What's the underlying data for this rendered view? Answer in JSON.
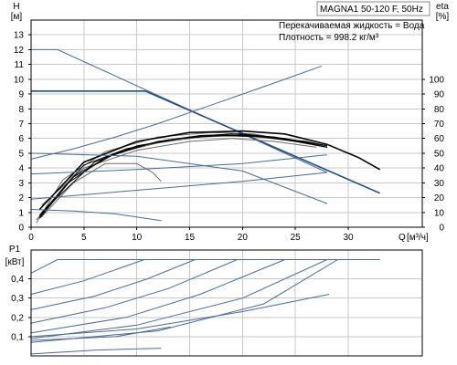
{
  "title": "MAGNA1 50-120 F, 50Hz",
  "fluid_line": "Перекачиваемая жидкость = Вода",
  "density_line": "Плотность = 998.2 кг/м³",
  "head_axis": {
    "label": "H",
    "unit": "[м]"
  },
  "eta_axis": {
    "label": "eta",
    "unit": "[%]"
  },
  "flow_axis": {
    "label": "Q",
    "unit": "[м³/ч]"
  },
  "power_axis": {
    "label": "P1",
    "unit": "[кВт]"
  },
  "chart_data": [
    {
      "type": "line",
      "name": "head",
      "xlim": [
        0,
        37
      ],
      "ylim": [
        0,
        14
      ],
      "x_ticks": [
        0,
        5,
        10,
        15,
        20,
        25,
        30
      ],
      "y_ticks": [
        0,
        1,
        2,
        3,
        4,
        5,
        6,
        7,
        8,
        9,
        10,
        11,
        12,
        13
      ],
      "grid": true,
      "series": [
        {
          "style": "blue",
          "points": [
            [
              0,
              12
            ],
            [
              2.5,
              12
            ],
            [
              28,
              3.7
            ]
          ]
        },
        {
          "style": "heavyblue",
          "points": [
            [
              0,
              9.2
            ],
            [
              10.8,
              9.2
            ],
            [
              33,
              2.3
            ]
          ]
        },
        {
          "style": "gray",
          "points": [
            [
              0.5,
              0.3
            ],
            [
              3,
              3.2
            ],
            [
              7,
              5.1
            ],
            [
              12,
              6.1
            ],
            [
              17,
              6.4
            ],
            [
              21,
              6.3
            ],
            [
              25,
              5.8
            ],
            [
              28,
              5.4
            ]
          ]
        },
        {
          "style": "gray",
          "points": [
            [
              0.5,
              0.5
            ],
            [
              4,
              3.5
            ],
            [
              8,
              5
            ],
            [
              12,
              5.7
            ],
            [
              16,
              6.1
            ],
            [
              20,
              6.2
            ],
            [
              24,
              5.9
            ],
            [
              28,
              5.5
            ]
          ]
        },
        {
          "style": "gray",
          "points": [
            [
              1,
              1.5
            ],
            [
              5,
              4
            ],
            [
              10,
              5.2
            ],
            [
              15,
              5.8
            ],
            [
              19,
              6
            ],
            [
              23,
              5.8
            ],
            [
              27,
              5.4
            ]
          ]
        },
        {
          "style": "gray",
          "points": [
            [
              1,
              0.7
            ],
            [
              4,
              3
            ],
            [
              7,
              4.3
            ],
            [
              10,
              4.3
            ],
            [
              11.5,
              3.7
            ],
            [
              12.3,
              3.1
            ]
          ]
        },
        {
          "style": "black",
          "points": [
            [
              0.8,
              0.7
            ],
            [
              3.5,
              3
            ],
            [
              7,
              4.7
            ],
            [
              11,
              5.6
            ],
            [
              15,
              6.1
            ],
            [
              19,
              6.3
            ],
            [
              23,
              6.1
            ],
            [
              26,
              5.7
            ],
            [
              28,
              5.4
            ]
          ]
        },
        {
          "style": "black",
          "points": [
            [
              0.8,
              0.6
            ],
            [
              4,
              3.4
            ],
            [
              8,
              5
            ],
            [
              12,
              5.8
            ],
            [
              16,
              6.2
            ],
            [
              20,
              6.3
            ],
            [
              24,
              6
            ],
            [
              28,
              5.5
            ]
          ]
        },
        {
          "style": "black",
          "points": [
            [
              0.8,
              0.8
            ],
            [
              5,
              4.2
            ],
            [
              9,
              5.3
            ],
            [
              13,
              5.9
            ],
            [
              17,
              6.2
            ],
            [
              21,
              6.2
            ],
            [
              25,
              5.8
            ],
            [
              28,
              5.4
            ]
          ]
        },
        {
          "style": "black",
          "points": [
            [
              1,
              1
            ],
            [
              6,
              4.4
            ],
            [
              10,
              5.5
            ],
            [
              14,
              6
            ],
            [
              18,
              6.2
            ],
            [
              22,
              6.1
            ],
            [
              26,
              5.8
            ],
            [
              28,
              5.5
            ]
          ]
        },
        {
          "style": "heavy",
          "points": [
            [
              0.8,
              1.2
            ],
            [
              5,
              4.4
            ],
            [
              10,
              5.8
            ],
            [
              15,
              6.4
            ],
            [
              20,
              6.5
            ],
            [
              24,
              6.3
            ],
            [
              28,
              5.6
            ],
            [
              31,
              4.7
            ],
            [
              33,
              3.9
            ]
          ]
        },
        {
          "style": "blue",
          "points": [
            [
              0,
              4.6
            ],
            [
              4,
              5.3
            ],
            [
              8,
              6.1
            ],
            [
              12,
              7
            ],
            [
              16,
              8
            ],
            [
              20,
              9
            ],
            [
              24,
              10
            ],
            [
              27.5,
              10.9
            ]
          ]
        },
        {
          "style": "blue",
          "points": [
            [
              0,
              1.9
            ],
            [
              10,
              2.5
            ],
            [
              20,
              3.1
            ],
            [
              28,
              3.7
            ]
          ]
        },
        {
          "style": "blue",
          "points": [
            [
              0,
              3.6
            ],
            [
              10,
              3.9
            ],
            [
              20,
              4.3
            ],
            [
              28,
              4.9
            ]
          ]
        },
        {
          "style": "blue",
          "points": [
            [
              0,
              5
            ],
            [
              10,
              4.8
            ],
            [
              20,
              3.8
            ],
            [
              28,
              1.6
            ]
          ]
        },
        {
          "style": "blue",
          "points": [
            [
              0,
              1.2
            ],
            [
              4,
              1.1
            ],
            [
              8,
              0.9
            ],
            [
              12.3,
              0.45
            ]
          ]
        }
      ]
    },
    {
      "type": "line",
      "name": "power",
      "xlim": [
        0,
        37
      ],
      "ylim": [
        0,
        0.55
      ],
      "y_ticks": [
        0.1,
        0.2,
        0.3,
        0.4
      ],
      "grid": true,
      "series": [
        {
          "style": "blue",
          "points": [
            [
              0,
              0.43
            ],
            [
              2.5,
              0.5
            ],
            [
              33,
              0.5
            ]
          ]
        },
        {
          "style": "blue",
          "points": [
            [
              0,
              0.32
            ],
            [
              5,
              0.39
            ],
            [
              10.7,
              0.5
            ]
          ]
        },
        {
          "style": "blue",
          "points": [
            [
              0,
              0.24
            ],
            [
              6,
              0.31
            ],
            [
              11,
              0.4
            ],
            [
              15.5,
              0.5
            ]
          ]
        },
        {
          "style": "blue",
          "points": [
            [
              0,
              0.17
            ],
            [
              7,
              0.25
            ],
            [
              13,
              0.35
            ],
            [
              19.5,
              0.5
            ]
          ]
        },
        {
          "style": "blue",
          "points": [
            [
              0,
              0.12
            ],
            [
              9,
              0.2
            ],
            [
              16,
              0.32
            ],
            [
              24,
              0.5
            ]
          ]
        },
        {
          "style": "blue",
          "points": [
            [
              0,
              0.09
            ],
            [
              10,
              0.16
            ],
            [
              20,
              0.3
            ],
            [
              28,
              0.5
            ]
          ]
        },
        {
          "style": "blue",
          "points": [
            [
              0,
              0.07
            ],
            [
              12,
              0.13
            ],
            [
              22,
              0.27
            ],
            [
              29,
              0.5
            ]
          ]
        },
        {
          "style": "blue",
          "points": [
            [
              0,
              0.1
            ],
            [
              10,
              0.14
            ],
            [
              20,
              0.23
            ],
            [
              28.2,
              0.32
            ]
          ]
        },
        {
          "style": "blue",
          "points": [
            [
              0,
              0.08
            ],
            [
              8,
              0.1
            ],
            [
              13.2,
              0.15
            ]
          ]
        },
        {
          "style": "blue",
          "points": [
            [
              0,
              0.01
            ],
            [
              6,
              0.03
            ],
            [
              12.3,
              0.04
            ]
          ]
        }
      ]
    }
  ]
}
